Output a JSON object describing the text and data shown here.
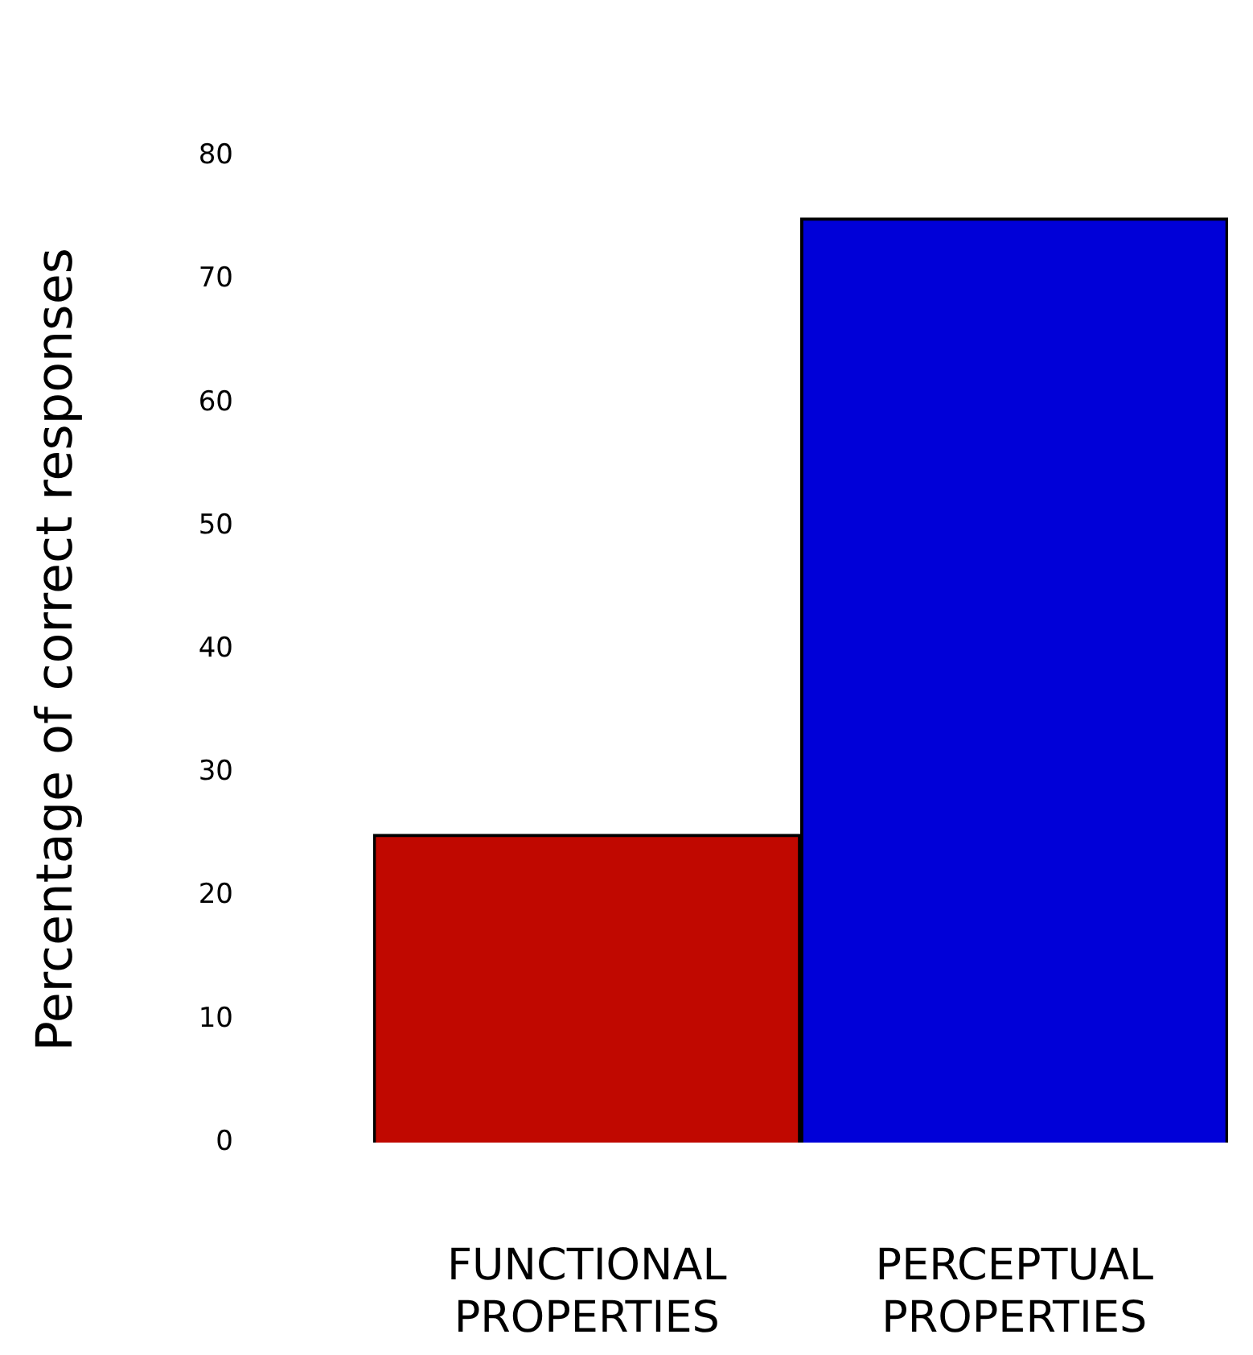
{
  "chart_data": {
    "type": "bar",
    "ylabel": "Percentage of correct responses",
    "categories": [
      "FUNCTIONAL PROPERTIES",
      "PERCEPTUAL PROPERTIES"
    ],
    "values": [
      25,
      75
    ],
    "colors": [
      "#c00800",
      "#0000d8"
    ],
    "ylim": [
      0,
      80
    ],
    "yticks": [
      0,
      10,
      20,
      30,
      40,
      50,
      60,
      70,
      80
    ],
    "grid": false,
    "legend": false
  }
}
